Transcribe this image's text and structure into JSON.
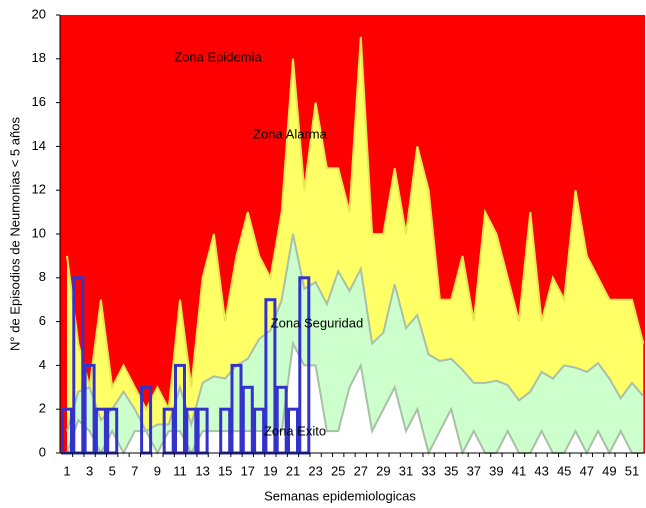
{
  "chart_data": {
    "type": "area",
    "xlabel": "Semanas epidemiologicas",
    "ylabel": "N° de Episodios de Neumonias < 5 años",
    "categories": [
      1,
      null,
      3,
      null,
      5,
      null,
      7,
      null,
      9,
      null,
      11,
      null,
      13,
      null,
      15,
      null,
      17,
      null,
      19,
      null,
      21,
      null,
      23,
      null,
      25,
      null,
      27,
      null,
      29,
      null,
      31,
      null,
      33,
      null,
      35,
      null,
      37,
      null,
      39,
      null,
      41,
      null,
      43,
      null,
      45,
      null,
      47,
      null,
      49,
      null,
      51,
      null
    ],
    "ylim": [
      0,
      20
    ],
    "yticks": [
      0,
      2,
      4,
      6,
      8,
      10,
      12,
      14,
      16,
      18,
      20
    ],
    "background_color": "#ff0000",
    "annotations": [
      "Zona Epidemia"
    ],
    "series": [
      {
        "name": "Zona Alarma",
        "color": "#ffff66",
        "values": [
          9,
          5,
          3,
          7,
          3,
          4,
          3,
          2,
          3,
          2,
          7,
          3,
          8,
          10,
          6,
          9,
          11,
          9,
          8,
          11,
          18,
          12,
          16,
          13,
          13,
          11,
          19,
          10,
          10,
          13,
          10,
          14,
          12,
          7,
          7,
          9,
          6,
          11,
          10,
          8,
          6,
          11,
          6,
          8,
          7,
          12,
          9,
          8,
          7,
          7,
          7,
          5
        ]
      },
      {
        "name": "Zona Seguridad",
        "color": "#ccffcc",
        "values": [
          1,
          2.8,
          3,
          1.5,
          2,
          2.8,
          2,
          1,
          1.3,
          1.3,
          3,
          1.3,
          3.2,
          3.5,
          3.4,
          4,
          4.3,
          5.2,
          5.6,
          7,
          10,
          7.5,
          7.8,
          6.8,
          8.3,
          7.4,
          8.4,
          5,
          5.5,
          7.7,
          5.7,
          6.3,
          4.5,
          4.2,
          4.3,
          3.8,
          3.2,
          3.2,
          3.3,
          3.1,
          2.4,
          2.8,
          3.7,
          3.4,
          4,
          3.9,
          3.7,
          4.1,
          3.4,
          2.5,
          3.2,
          2.6
        ]
      },
      {
        "name": "Zona Exito",
        "color": "#ffffff",
        "values": [
          0,
          1.5,
          1,
          0,
          1,
          0,
          1,
          1,
          0,
          1,
          1,
          0,
          1,
          1,
          1,
          1,
          1,
          1,
          1,
          1,
          5,
          4,
          4,
          1,
          1,
          3,
          4,
          1,
          2,
          3,
          1,
          2,
          0,
          1,
          2,
          0,
          1,
          0,
          0,
          1,
          0,
          0,
          1,
          0,
          0,
          1,
          0,
          1,
          0,
          1,
          0,
          0
        ]
      },
      {
        "type": "bar",
        "color": "#3333cc",
        "values": [
          2,
          8,
          4,
          2,
          2,
          0,
          0,
          3,
          0,
          2,
          4,
          2,
          2,
          0,
          2,
          4,
          3,
          2,
          7,
          3,
          2,
          8,
          null,
          null,
          null,
          null,
          null,
          null,
          null,
          null,
          null,
          null,
          null,
          null,
          null,
          null,
          null,
          null,
          null,
          null,
          null,
          null,
          null,
          null,
          null,
          null,
          null,
          null,
          null,
          null,
          null,
          null
        ]
      }
    ]
  }
}
